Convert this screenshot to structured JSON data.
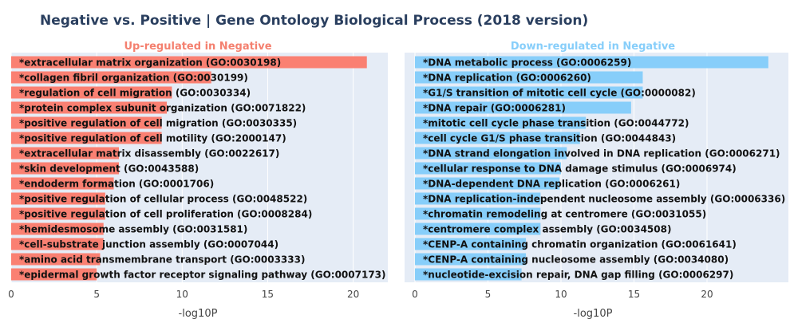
{
  "title": "Negative vs. Positive | Gene Ontology Biological Process (2018 version)",
  "chart_data": [
    {
      "type": "bar",
      "orientation": "horizontal",
      "subtitle": "Up-regulated in Negative",
      "xlabel": "-log10P",
      "xlim": [
        0,
        22
      ],
      "xticks": [
        0,
        5,
        10,
        15,
        20
      ],
      "grid": true,
      "color": "#fa8072",
      "title_color": "#f4806f",
      "categories": [
        "*extracellular matrix organization (GO:0030198)",
        "*collagen fibril organization (GO:0030199)",
        "*regulation of cell migration (GO:0030334)",
        "*protein complex subunit organization (GO:0071822)",
        "*positive regulation of cell migration (GO:0030335)",
        "*positive regulation of cell motility (GO:2000147)",
        "*extracellular matrix disassembly (GO:0022617)",
        "*skin development (GO:0043588)",
        "*endoderm formation (GO:0001706)",
        "*positive regulation of cellular process (GO:0048522)",
        "*positive regulation of cell proliferation (GO:0008284)",
        "*hemidesmosome assembly (GO:0031581)",
        "*cell-substrate junction assembly (GO:0007044)",
        "*amino acid transmembrane transport (GO:0003333)",
        "*epidermal growth factor receptor signaling pathway (GO:0007173)"
      ],
      "values": [
        20.8,
        11.7,
        9.4,
        9.1,
        8.8,
        8.8,
        6.3,
        6.3,
        6.0,
        5.5,
        5.5,
        5.4,
        5.4,
        5.2,
        5.0
      ]
    },
    {
      "type": "bar",
      "orientation": "horizontal",
      "subtitle": "Down-regulated in Negative",
      "xlabel": "-log10P",
      "xlim": [
        0,
        25
      ],
      "xticks": [
        0,
        5,
        10,
        15,
        20
      ],
      "grid": true,
      "color": "#87cefa",
      "title_color": "#87cefa",
      "categories": [
        "*DNA metabolic process (GO:0006259)",
        "*DNA replication (GO:0006260)",
        "*G1/S transition of mitotic cell cycle (GO:0000082)",
        "*DNA repair (GO:0006281)",
        "*mitotic cell cycle phase transition (GO:0044772)",
        "*cell cycle G1/S phase transition (GO:0044843)",
        "*DNA strand elongation involved in DNA replication (GO:0006271)",
        "*cellular response to DNA damage stimulus (GO:0006974)",
        "*DNA-dependent DNA replication (GO:0006261)",
        "*DNA replication-independent nucleosome assembly (GO:0006336)",
        "*chromatin remodeling at centromere (GO:0031055)",
        "*centromere complex assembly (GO:0034508)",
        "*CENP-A containing chromatin organization (GO:0061641)",
        "*CENP-A containing nucleosome assembly (GO:0034080)",
        "*nucleotide-excision repair, DNA gap filling (GO:0006297)"
      ],
      "values": [
        24.2,
        15.6,
        15.6,
        14.8,
        11.7,
        11.3,
        10.4,
        10.0,
        9.9,
        8.6,
        8.6,
        8.6,
        7.6,
        7.6,
        7.3
      ]
    }
  ]
}
